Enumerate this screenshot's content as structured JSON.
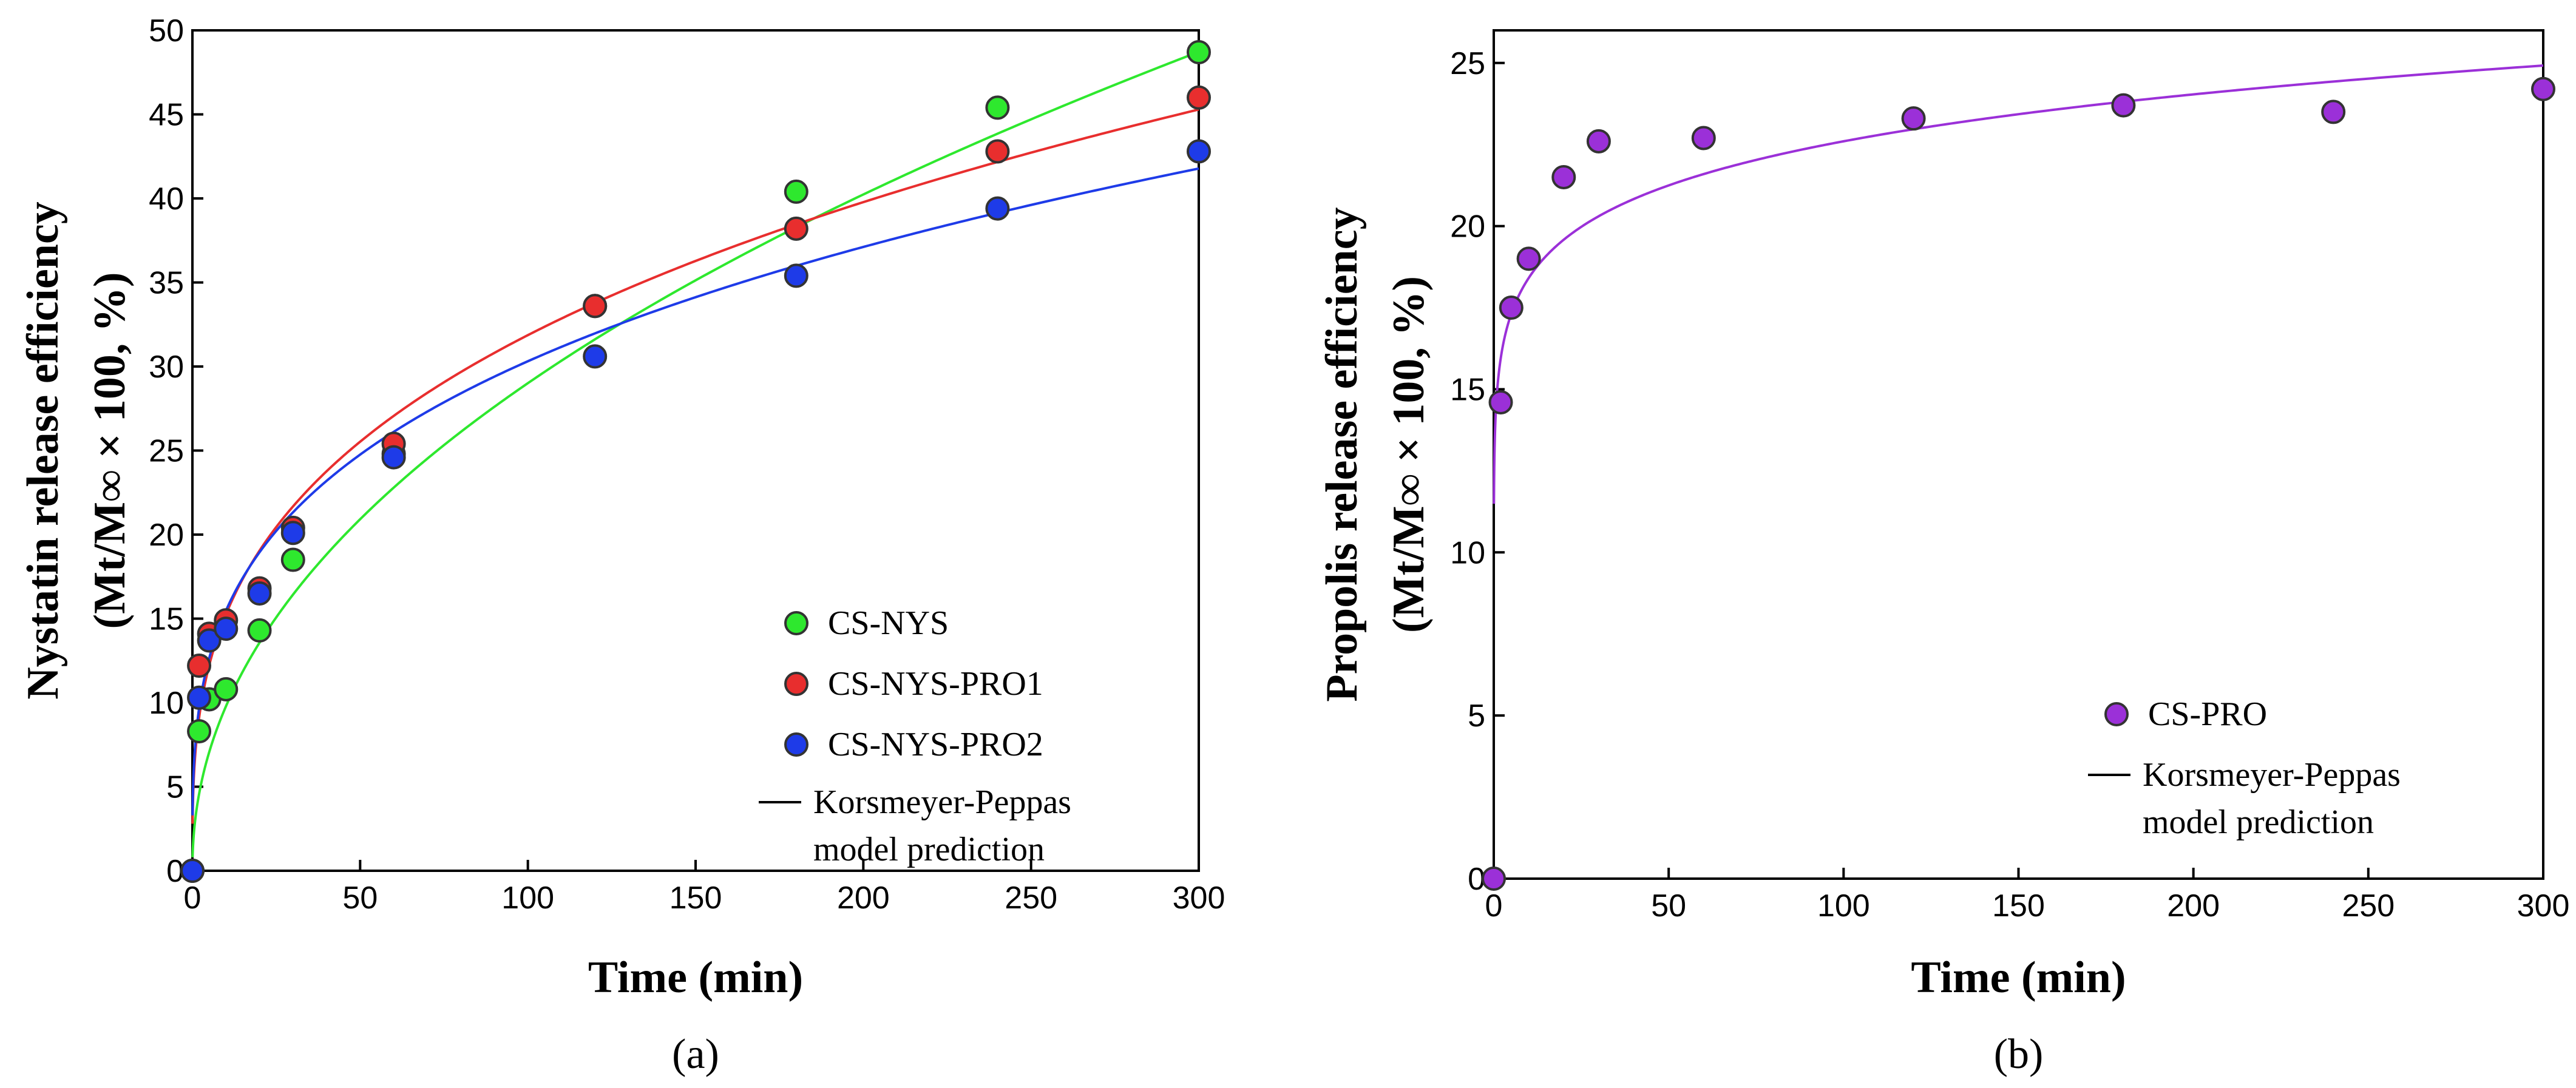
{
  "chart_data": [
    {
      "type": "scatter",
      "panel_label": "(a)",
      "xlabel": "Time (min)",
      "ylabel": "Nystatin release efficiency",
      "ylabel_sub": "(Mt/M∞ × 100, %)",
      "xlim": [
        0,
        300
      ],
      "ylim": [
        0,
        50
      ],
      "xticks": [
        "0",
        "50",
        "100",
        "150",
        "200",
        "250",
        "300"
      ],
      "yticks": [
        "0",
        "5",
        "10",
        "15",
        "20",
        "25",
        "30",
        "35",
        "40",
        "45",
        "50"
      ],
      "legend_position": "bottom-right",
      "series": [
        {
          "name": "CS-NYS",
          "color": "#2ee82e",
          "x": [
            0,
            2,
            5,
            10,
            20,
            30,
            60,
            120,
            180,
            240,
            300
          ],
          "y": [
            0,
            8.3,
            10.2,
            10.8,
            14.3,
            18.5,
            24.8,
            33.6,
            40.4,
            45.4,
            48.7
          ],
          "fit": {
            "k": 3.3,
            "n": 0.472
          }
        },
        {
          "name": "CS-NYS-PRO1",
          "color": "#e82e2e",
          "x": [
            0,
            2,
            5,
            10,
            20,
            30,
            60,
            120,
            180,
            240,
            300
          ],
          "y": [
            0,
            12.2,
            14.1,
            14.9,
            16.8,
            20.4,
            25.4,
            33.6,
            38.2,
            42.8,
            46.0
          ],
          "fit": {
            "k": 7.3,
            "n": 0.32
          }
        },
        {
          "name": "CS-NYS-PRO2",
          "color": "#1e3be8",
          "x": [
            0,
            2,
            5,
            10,
            20,
            30,
            60,
            120,
            180,
            240,
            300
          ],
          "y": [
            0,
            10.3,
            13.7,
            14.4,
            16.5,
            20.1,
            24.6,
            30.6,
            35.4,
            39.4,
            42.8
          ],
          "fit": {
            "k": 7.9,
            "n": 0.292
          }
        }
      ],
      "model_legend": [
        "Korsmeyer-Peppas",
        "model prediction"
      ]
    },
    {
      "type": "scatter",
      "panel_label": "(b)",
      "xlabel": "Time (min)",
      "ylabel": "Propolis release efficiency",
      "ylabel_sub": "(Mt/M∞ × 100, %)",
      "xlim": [
        0,
        300
      ],
      "ylim": [
        0,
        26
      ],
      "xticks": [
        "0",
        "50",
        "100",
        "150",
        "200",
        "250",
        "300"
      ],
      "yticks": [
        "0",
        "5",
        "10",
        "15",
        "20",
        "25"
      ],
      "legend_position": "bottom-right",
      "series": [
        {
          "name": "CS-PRO",
          "color": "#9b30d8",
          "x": [
            0,
            2,
            5,
            10,
            20,
            30,
            60,
            120,
            180,
            240,
            300
          ],
          "y": [
            0,
            14.6,
            17.5,
            19.0,
            21.5,
            22.6,
            22.7,
            23.3,
            23.7,
            23.5,
            24.2
          ],
          "fit": {
            "k": 15.0,
            "n": 0.089
          }
        }
      ],
      "model_legend": [
        "Korsmeyer-Peppas",
        "model prediction"
      ]
    }
  ]
}
